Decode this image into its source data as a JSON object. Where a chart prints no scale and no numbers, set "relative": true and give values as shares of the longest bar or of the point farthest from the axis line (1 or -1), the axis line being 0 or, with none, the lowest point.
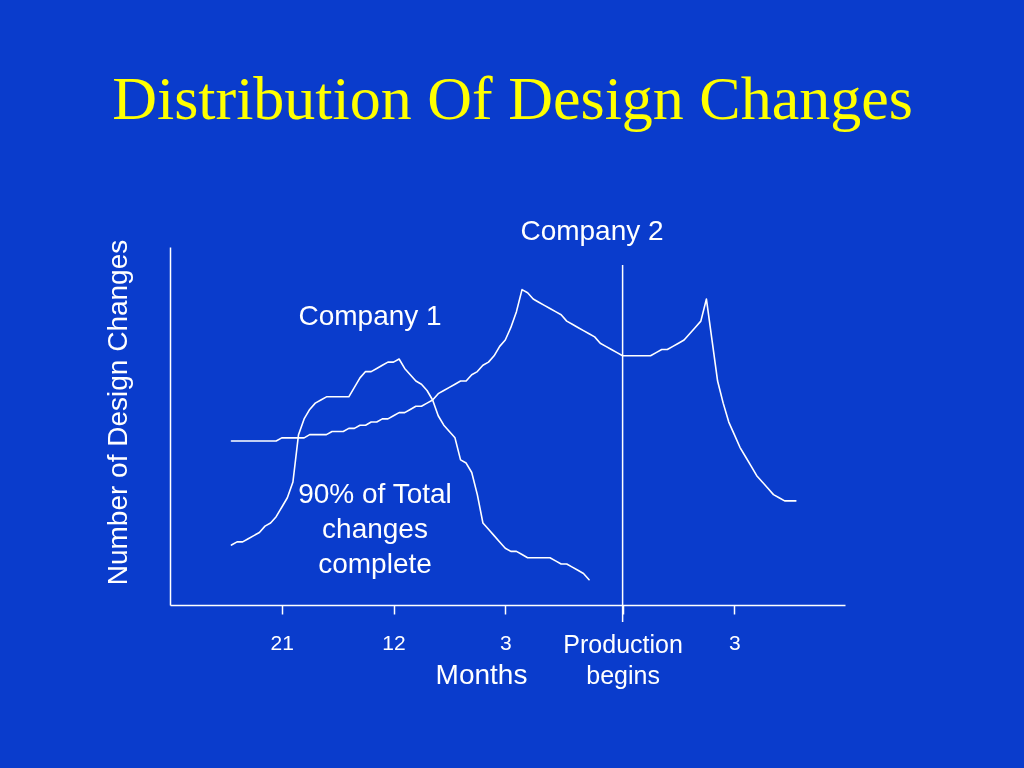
{
  "chart_data": {
    "type": "line",
    "title": "Distribution Of Design Changes",
    "xlabel": "Months",
    "ylabel": "Number of Design Changes",
    "relative": true,
    "categories": [
      null,
      null,
      null,
      null,
      null,
      null,
      null,
      null,
      null,
      "21",
      null,
      null,
      null,
      null,
      null,
      null,
      null,
      null,
      null,
      null,
      null,
      null,
      null,
      null,
      null,
      null,
      null,
      null,
      null,
      "12",
      null,
      null,
      null,
      null,
      null,
      null,
      null,
      null,
      null,
      null,
      null,
      null,
      null,
      null,
      null,
      null,
      null,
      null,
      null,
      "3",
      null,
      null,
      null,
      null,
      null,
      null,
      null,
      null,
      null,
      null,
      null,
      null,
      null,
      null,
      null,
      null,
      null,
      null,
      null,
      null,
      "Production begins",
      null,
      null,
      null,
      null,
      null,
      null,
      null,
      null,
      null,
      null,
      null,
      null,
      null,
      null,
      null,
      null,
      null,
      null,
      null,
      "3",
      null,
      null,
      null,
      null,
      null,
      null,
      null,
      null,
      null,
      null,
      null
    ],
    "ref_lines": [
      {
        "axis": "x",
        "value": "Production begins",
        "color": "#ffffff"
      }
    ],
    "annotations": [
      "90% of Total changes complete"
    ],
    "series": [
      {
        "name": "Company 1",
        "color": "#ffffff",
        "values": [
          0.19,
          0.2,
          0.2,
          0.21,
          0.22,
          0.23,
          0.25,
          0.26,
          0.28,
          0.31,
          0.34,
          0.39,
          0.54,
          0.59,
          0.62,
          0.64,
          0.65,
          0.66,
          0.66,
          0.66,
          0.66,
          0.66,
          0.69,
          0.72,
          0.74,
          0.74,
          0.75,
          0.76,
          0.77,
          0.77,
          0.78,
          0.75,
          0.73,
          0.71,
          0.7,
          0.68,
          0.65,
          0.6,
          0.57,
          0.55,
          0.53,
          0.46,
          0.45,
          0.42,
          0.35,
          0.26,
          0.24,
          0.22,
          0.2,
          0.18,
          0.17,
          0.17,
          0.16,
          0.15,
          0.15,
          0.15,
          0.15,
          0.15,
          0.14,
          0.13,
          0.13,
          0.12,
          0.11,
          0.1,
          0.08,
          null,
          null,
          null,
          null,
          null,
          null,
          null,
          null,
          null,
          null,
          null,
          null,
          null,
          null,
          null,
          null,
          null,
          null,
          null,
          null,
          null,
          null,
          null,
          null,
          null,
          null,
          null,
          null,
          null,
          null,
          null,
          null,
          null,
          null,
          null,
          null,
          null
        ]
      },
      {
        "name": "Company 2",
        "color": "#ffffff",
        "values": [
          0.52,
          0.52,
          0.52,
          0.52,
          0.52,
          0.52,
          0.52,
          0.52,
          0.52,
          0.53,
          0.53,
          0.53,
          0.53,
          0.53,
          0.54,
          0.54,
          0.54,
          0.54,
          0.55,
          0.55,
          0.55,
          0.56,
          0.56,
          0.57,
          0.57,
          0.58,
          0.58,
          0.59,
          0.59,
          0.6,
          0.61,
          0.61,
          0.62,
          0.63,
          0.63,
          0.64,
          0.65,
          0.67,
          0.68,
          0.69,
          0.7,
          0.71,
          0.71,
          0.73,
          0.74,
          0.76,
          0.77,
          0.79,
          0.82,
          0.84,
          0.88,
          0.93,
          1.0,
          0.99,
          0.97,
          0.96,
          0.95,
          0.94,
          0.93,
          0.92,
          0.9,
          0.89,
          0.88,
          0.87,
          0.86,
          0.85,
          0.83,
          0.82,
          0.81,
          0.8,
          0.79,
          0.79,
          0.79,
          0.79,
          0.79,
          0.79,
          0.8,
          0.81,
          0.81,
          0.82,
          0.83,
          0.84,
          0.86,
          0.88,
          0.9,
          0.97,
          0.84,
          0.71,
          0.64,
          0.58,
          0.54,
          0.5,
          0.47,
          0.44,
          0.41,
          0.39,
          0.37,
          0.35,
          0.34,
          0.33,
          0.33,
          0.33
        ]
      }
    ]
  }
}
